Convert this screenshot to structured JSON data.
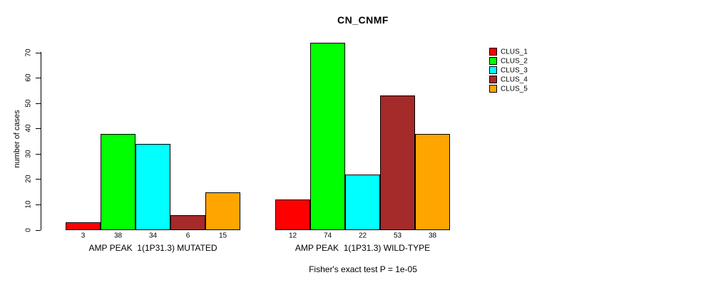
{
  "chart_data": {
    "type": "bar",
    "title": "CN_CNMF",
    "ylabel": "number of cases",
    "ylim": [
      0,
      70
    ],
    "yticks": [
      0,
      10,
      20,
      30,
      40,
      50,
      60,
      70
    ],
    "grid": false,
    "legend_position": "right-outside",
    "bar_value_labels_shown": true,
    "series": [
      {
        "name": "CLUS_1",
        "color": "#FF0000"
      },
      {
        "name": "CLUS_2",
        "color": "#00FF00"
      },
      {
        "name": "CLUS_3",
        "color": "#00FFFF"
      },
      {
        "name": "CLUS_4",
        "color": "#A52A2A"
      },
      {
        "name": "CLUS_5",
        "color": "#FFA500"
      }
    ],
    "groups": [
      {
        "label": "AMP PEAK  1(1P31.3) MUTATED",
        "values": [
          3,
          38,
          34,
          6,
          15
        ]
      },
      {
        "label": "AMP PEAK  1(1P31.3) WILD-TYPE",
        "values": [
          12,
          74,
          22,
          53,
          38
        ]
      }
    ],
    "footnote": "Fisher's exact test P = 1e-05"
  }
}
